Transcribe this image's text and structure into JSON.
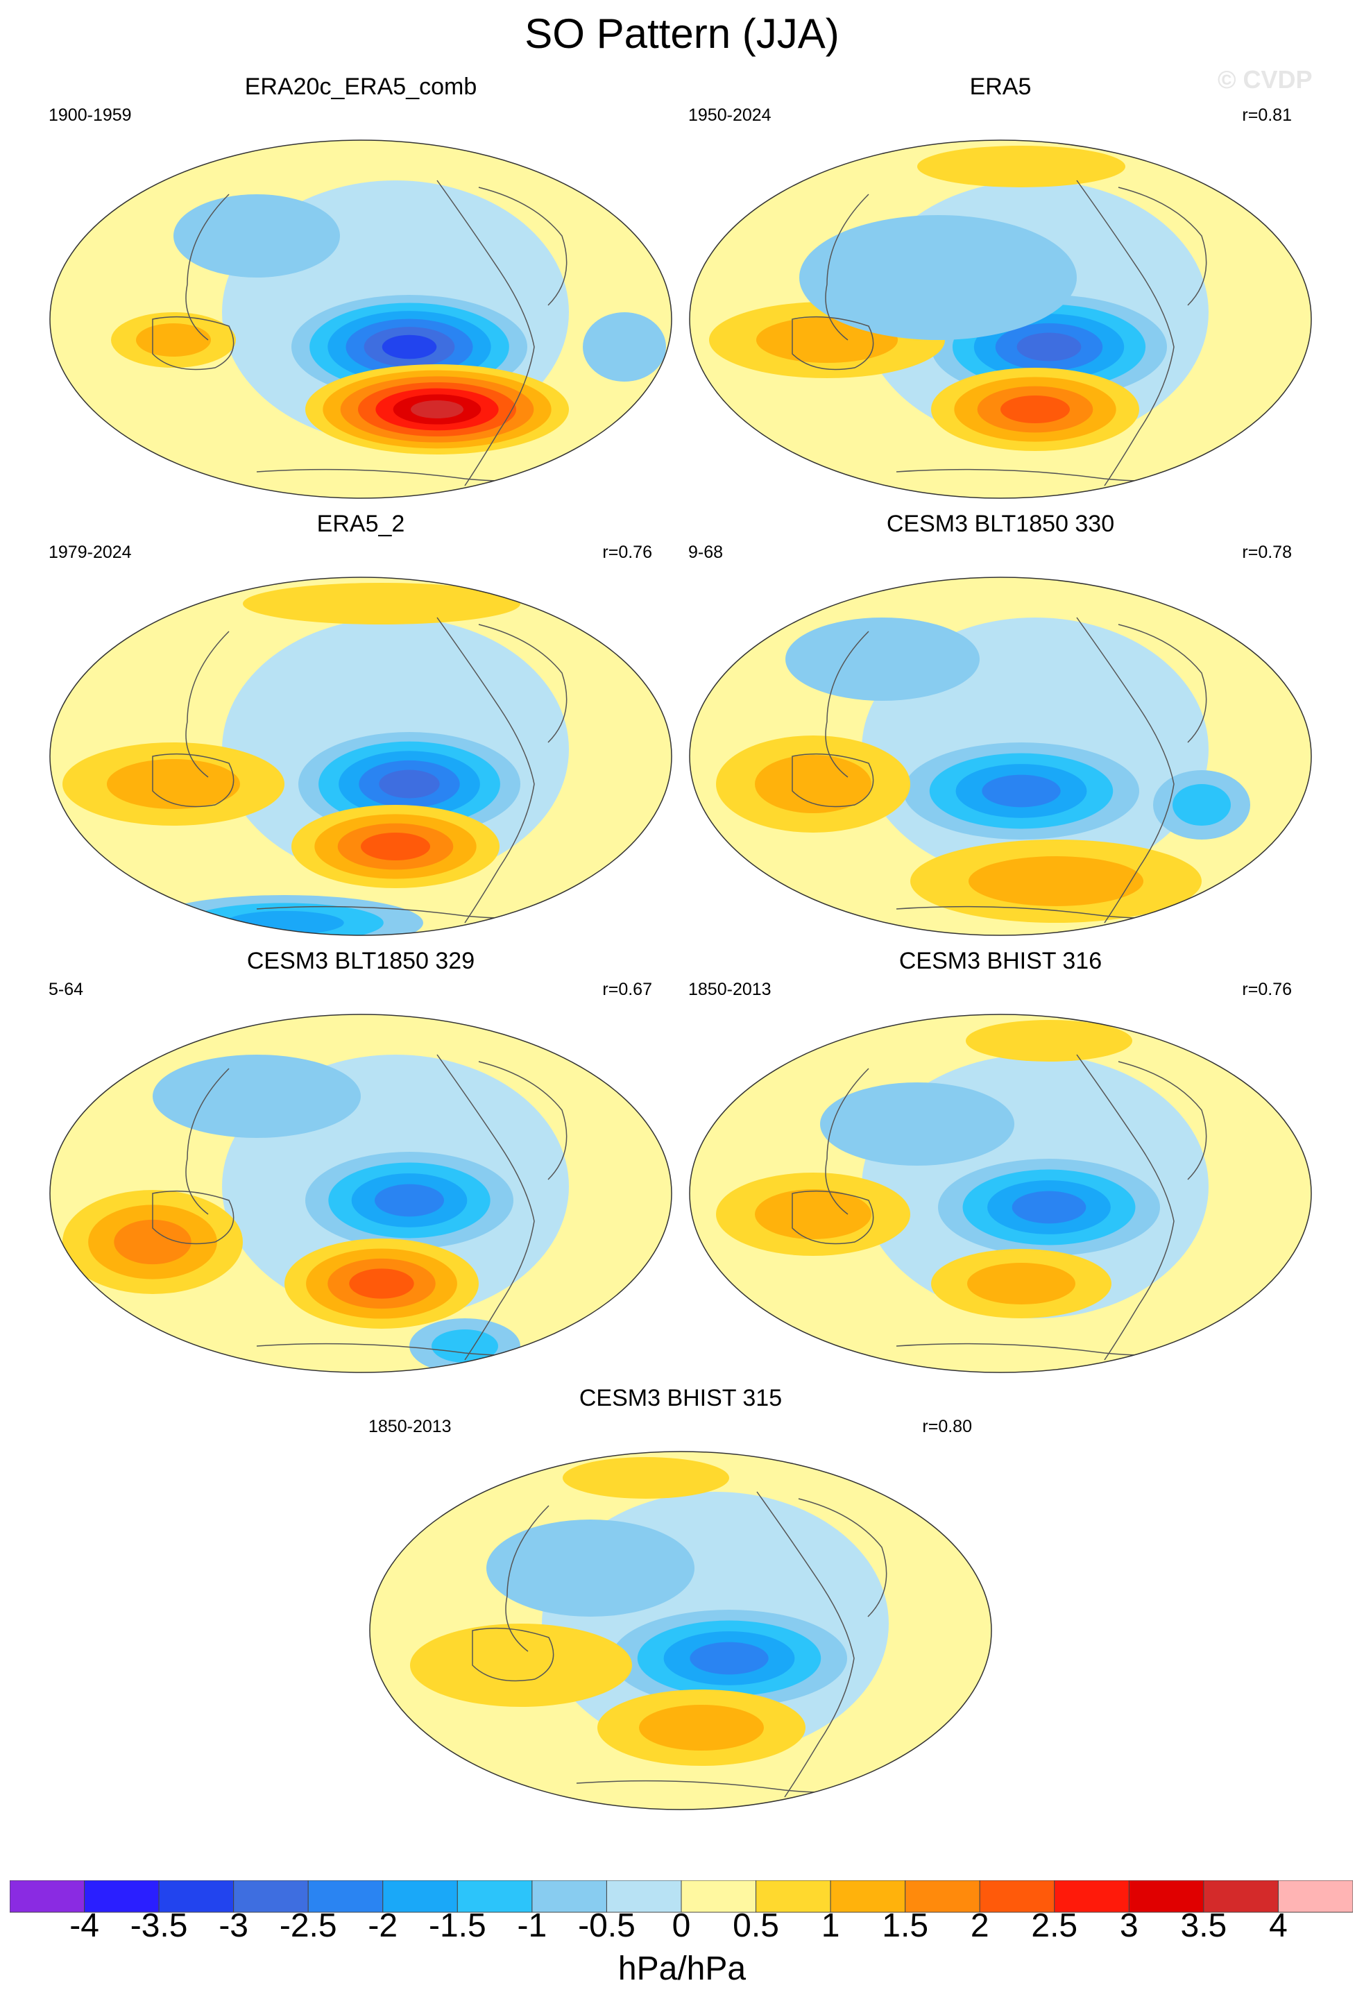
{
  "title": "SO Pattern (JJA)",
  "watermark": "© CVDP",
  "panels": [
    {
      "title": "ERA20c_ERA5_comb",
      "period": "1900-1959",
      "corr": ""
    },
    {
      "title": "ERA5",
      "period": "1950-2024",
      "corr": "r=0.81"
    },
    {
      "title": "ERA5_2",
      "period": "1979-2024",
      "corr": "r=0.76"
    },
    {
      "title": "CESM3 BLT1850 330",
      "period": "9-68",
      "corr": "r=0.78"
    },
    {
      "title": "CESM3 BLT1850 329",
      "period": "5-64",
      "corr": "r=0.67"
    },
    {
      "title": "CESM3 BHIST 316",
      "period": "1850-2013",
      "corr": "r=0.76"
    },
    {
      "title": "CESM3 BHIST 315",
      "period": "1850-2013",
      "corr": "r=0.80"
    }
  ],
  "colorbar": {
    "units": "hPa/hPa",
    "labels": [
      "-4",
      "-3.5",
      "-3",
      "-2.5",
      "-2",
      "-1.5",
      "-1",
      "-0.5",
      "0",
      "0.5",
      "1",
      "1.5",
      "2",
      "2.5",
      "3",
      "3.5",
      "4"
    ],
    "colors": [
      "#8a2be2",
      "#2a1fff",
      "#2244ee",
      "#3e6ee0",
      "#2a84f2",
      "#1aa8f8",
      "#2cc4fa",
      "#88ccf0",
      "#b8e2f4",
      "#fff8a0",
      "#ffd92e",
      "#ffb20c",
      "#ff8a0c",
      "#ff5a0a",
      "#ff1a0a",
      "#e00000",
      "#d42a2a",
      "#ffb4b4"
    ]
  }
}
